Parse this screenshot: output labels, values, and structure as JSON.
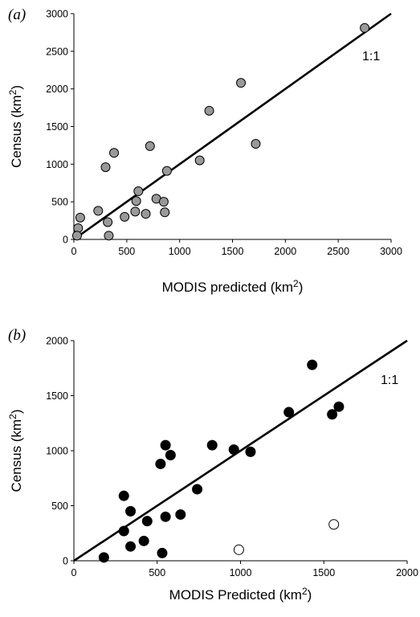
{
  "chart_data": [
    {
      "panel_label": "(a)",
      "type": "scatter",
      "xlabel": "MODIS predicted (km",
      "xlabel_sup": "2",
      "xlabel_end": ")",
      "ylabel": "Census (km",
      "ylabel_sup": "2",
      "ylabel_end": ")",
      "xlim": [
        0,
        3000
      ],
      "ylim": [
        0,
        3000
      ],
      "xticks": [
        0,
        500,
        1000,
        1500,
        2000,
        2500,
        3000
      ],
      "yticks": [
        0,
        500,
        1000,
        1500,
        2000,
        2500,
        3000
      ],
      "reference_line": {
        "label": "1:1",
        "from": [
          0,
          0
        ],
        "to": [
          3000,
          3000
        ]
      },
      "series": [
        {
          "marker": "grey-circle",
          "color": "#999999",
          "points": [
            [
              2750,
              2810
            ],
            [
              1580,
              2080
            ],
            [
              1280,
              1710
            ],
            [
              1720,
              1270
            ],
            [
              720,
              1240
            ],
            [
              1190,
              1050
            ],
            [
              380,
              1150
            ],
            [
              300,
              960
            ],
            [
              880,
              910
            ],
            [
              610,
              640
            ],
            [
              590,
              510
            ],
            [
              780,
              540
            ],
            [
              850,
              500
            ],
            [
              230,
              380
            ],
            [
              580,
              370
            ],
            [
              860,
              360
            ],
            [
              680,
              340
            ],
            [
              480,
              300
            ],
            [
              60,
              290
            ],
            [
              320,
              230
            ],
            [
              40,
              150
            ],
            [
              30,
              50
            ],
            [
              330,
              50
            ]
          ]
        }
      ]
    },
    {
      "panel_label": "(b)",
      "type": "scatter",
      "xlabel": "MODIS Predicted (km",
      "xlabel_sup": "2",
      "xlabel_end": ")",
      "ylabel": "Census (km",
      "ylabel_sup": "2",
      "ylabel_end": ")",
      "xlim": [
        0,
        2000
      ],
      "ylim": [
        0,
        2000
      ],
      "xticks": [
        0,
        500,
        1000,
        1500,
        2000
      ],
      "yticks": [
        0,
        500,
        1000,
        1500,
        2000
      ],
      "reference_line": {
        "label": "1:1",
        "from": [
          0,
          0
        ],
        "to": [
          2000,
          2000
        ]
      },
      "series": [
        {
          "marker": "filled-circle",
          "color": "#000000",
          "points": [
            [
              1430,
              1780
            ],
            [
              1590,
              1400
            ],
            [
              1290,
              1350
            ],
            [
              1550,
              1330
            ],
            [
              830,
              1050
            ],
            [
              550,
              1050
            ],
            [
              960,
              1010
            ],
            [
              1060,
              990
            ],
            [
              580,
              960
            ],
            [
              520,
              880
            ],
            [
              740,
              650
            ],
            [
              300,
              590
            ],
            [
              340,
              450
            ],
            [
              640,
              420
            ],
            [
              550,
              400
            ],
            [
              440,
              360
            ],
            [
              300,
              270
            ],
            [
              420,
              180
            ],
            [
              340,
              130
            ],
            [
              530,
              70
            ],
            [
              180,
              30
            ]
          ]
        },
        {
          "marker": "open-circle",
          "color": "#000000",
          "points": [
            [
              1560,
              330
            ],
            [
              990,
              100
            ]
          ]
        }
      ]
    }
  ]
}
